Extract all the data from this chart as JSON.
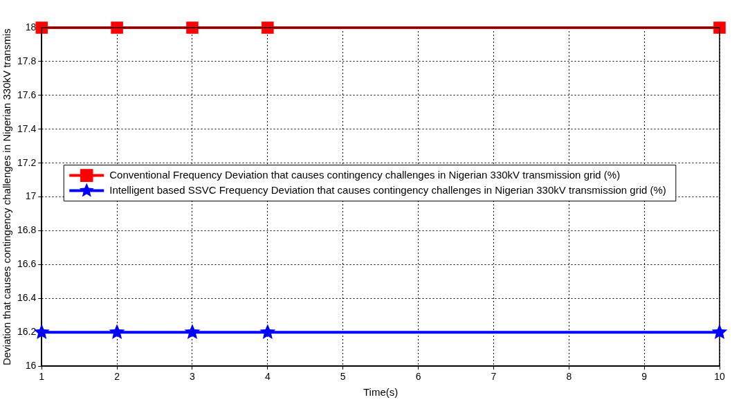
{
  "chart_data": {
    "type": "line",
    "xlabel": "Time(s)",
    "ylabel": "Deviation that causes contingency challenges in Nigerian 330kV transmis",
    "x": [
      1,
      2,
      3,
      4,
      10
    ],
    "series": [
      {
        "name": "Conventional Frequency Deviation that causes contingency challenges in Nigerian 330kV transmission grid (%)",
        "color": "#ff0000",
        "marker": "square",
        "values": [
          18,
          18,
          18,
          18,
          18
        ]
      },
      {
        "name": "Intelligent based SSVC Frequency Deviation that causes contingency challenges in Nigerian 330kV transmission grid (%)",
        "color": "#0000ff",
        "marker": "star",
        "values": [
          16.2,
          16.2,
          16.2,
          16.2,
          16.2
        ]
      }
    ],
    "xlim": [
      1,
      10
    ],
    "xticks": [
      1,
      2,
      3,
      4,
      5,
      6,
      7,
      8,
      9,
      10
    ],
    "ylim": [
      16,
      18
    ],
    "yticks": [
      16,
      16.2,
      16.4,
      16.6,
      16.8,
      17,
      17.2,
      17.4,
      17.6,
      17.8,
      18
    ],
    "grid": true,
    "legend": "center",
    "line_style": "solid"
  }
}
